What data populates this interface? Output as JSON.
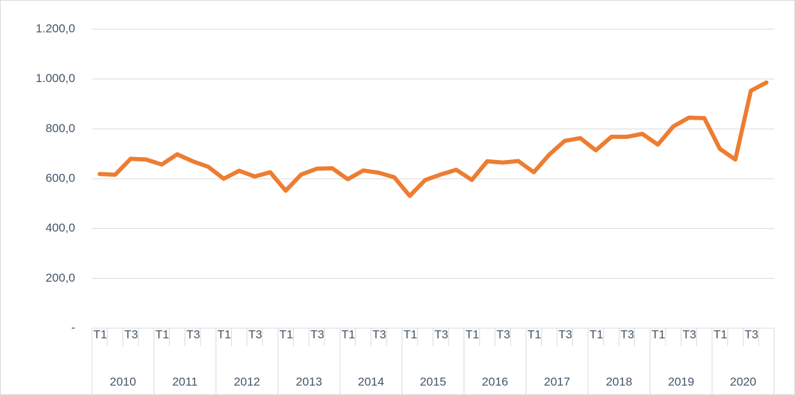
{
  "chart_data": {
    "type": "line",
    "categories": [
      "T1",
      null,
      "T3",
      null,
      "T1",
      null,
      "T3",
      null,
      "T1",
      null,
      "T3",
      null,
      "T1",
      null,
      "T3",
      null,
      "T1",
      null,
      "T3",
      null,
      "T1",
      null,
      "T3",
      null,
      "T1",
      null,
      "T3",
      null,
      "T1",
      null,
      "T3",
      null,
      "T1",
      null,
      "T3",
      null,
      "T1",
      null,
      "T3",
      null,
      "T1",
      null,
      "T3",
      null
    ],
    "year_labels": [
      "2010",
      "2011",
      "2012",
      "2013",
      "2014",
      "2015",
      "2016",
      "2017",
      "2018",
      "2019",
      "2020"
    ],
    "values": [
      619,
      616,
      680,
      677,
      657,
      698,
      670,
      648,
      600,
      632,
      609,
      626,
      552,
      617,
      640,
      642,
      598,
      633,
      624,
      606,
      531,
      595,
      617,
      636,
      595,
      670,
      665,
      671,
      626,
      697,
      752,
      763,
      714,
      768,
      768,
      780,
      737,
      810,
      845,
      843,
      720,
      677,
      953,
      986
    ],
    "color": "#ed7d31",
    "ylim": [
      0,
      1200
    ],
    "yticks": [
      {
        "value": 0,
        "label": "-"
      },
      {
        "value": 200,
        "label": "200,0"
      },
      {
        "value": 400,
        "label": "400,0"
      },
      {
        "value": 600,
        "label": "600,0"
      },
      {
        "value": 800,
        "label": "800,0"
      },
      {
        "value": 1000,
        "label": "1.000,0"
      },
      {
        "value": 1200,
        "label": "1.200,0"
      }
    ],
    "grid": true
  }
}
